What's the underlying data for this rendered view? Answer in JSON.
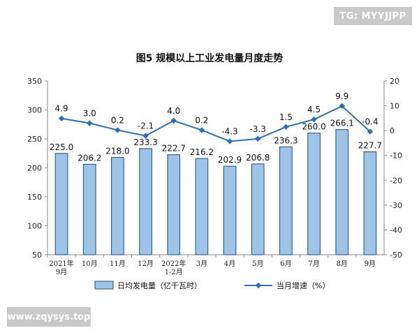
{
  "watermarks": {
    "top_right": "TG: MYYJJPP",
    "bottom_left": "www.zqysys.top"
  },
  "chart_data": {
    "type": "bar",
    "title": "图5  规模以上工业发电量月度走势",
    "categories": [
      "2021年\n9月",
      "10月",
      "11月",
      "12月",
      "2022年\n1-2月",
      "3月",
      "4月",
      "5月",
      "6月",
      "7月",
      "8月",
      "9月"
    ],
    "series": [
      {
        "name": "日均发电量（亿千瓦时）",
        "type": "bar",
        "axis": "left",
        "color": "#9dc3e6",
        "values": [
          225.0,
          206.2,
          218.0,
          233.3,
          222.7,
          216.2,
          202.9,
          206.8,
          236.3,
          260.0,
          266.1,
          227.7
        ],
        "labels": [
          "225.0",
          "206.2",
          "218.0",
          "233.3",
          "222.7",
          "216.2",
          "202.9",
          "206.8",
          "236.3",
          "260.0",
          "266.1",
          "227.7"
        ]
      },
      {
        "name": "当月增速（%）",
        "type": "line",
        "axis": "right",
        "color": "#2e6fad",
        "values": [
          4.9,
          3.0,
          0.2,
          -2.1,
          4.0,
          0.2,
          -4.3,
          -3.3,
          1.5,
          4.5,
          9.9,
          -0.4
        ],
        "labels": [
          "4.9",
          "3.0",
          "0.2",
          "-2.1",
          "4.0",
          "0.2",
          "-4.3",
          "-3.3",
          "1.5",
          "4.5",
          "9.9",
          "-0.4"
        ]
      }
    ],
    "ylim_left": [
      50,
      350
    ],
    "yticks_left": [
      50,
      100,
      150,
      200,
      250,
      300,
      350
    ],
    "ylim_right": [
      -50,
      20
    ],
    "yticks_right": [
      -50,
      -40,
      -30,
      -20,
      -10,
      0,
      10,
      20
    ],
    "grid": false,
    "legend_position": "bottom"
  }
}
